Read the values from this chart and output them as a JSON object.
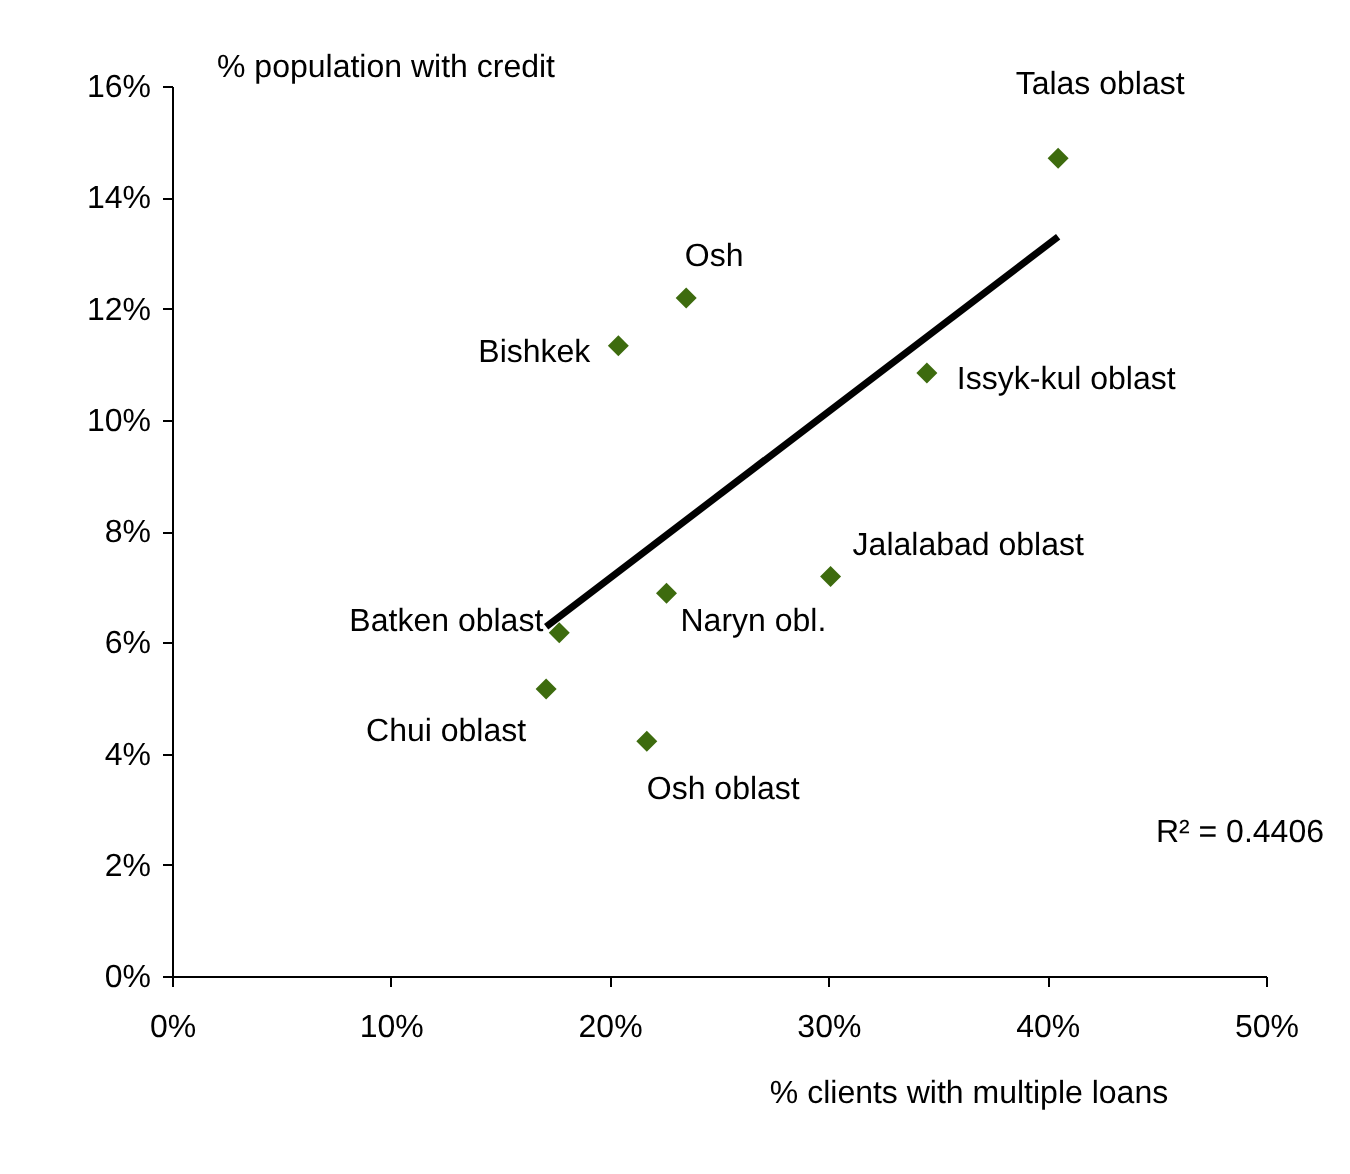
{
  "chart_data": {
    "type": "scatter",
    "xlabel": "% clients with multiple loans",
    "ylabel": "% population with credit",
    "series": [
      {
        "marker": "diamond",
        "color": "#3d6b0e",
        "x": [
          40.5,
          23.5,
          20.4,
          34.5,
          30.1,
          22.6,
          17.7,
          17.1,
          21.7
        ],
        "values": [
          14.7,
          12.19,
          11.33,
          10.84,
          7.18,
          6.88,
          6.17,
          5.16,
          4.22
        ]
      },
      {
        "type": "line",
        "color": "#000000",
        "x": [
          17.1,
          40.5
        ],
        "values": [
          6.28,
          13.29
        ]
      }
    ],
    "annotations": [
      {
        "text": "Talas oblast",
        "x": 40.5,
        "y": 14.7
      },
      {
        "text": "Osh",
        "x": 23.5,
        "y": 12.19
      },
      {
        "text": "Bishkek",
        "x": 20.4,
        "y": 11.33
      },
      {
        "text": "Issyk-kul oblast",
        "x": 34.5,
        "y": 10.84
      },
      {
        "text": "Jalalabad oblast",
        "x": 30.1,
        "y": 7.18
      },
      {
        "text": "Naryn obl.",
        "x": 22.6,
        "y": 6.88
      },
      {
        "text": "Batken oblast",
        "x": 17.7,
        "y": 6.17
      },
      {
        "text": "Chui oblast",
        "x": 17.1,
        "y": 5.16
      },
      {
        "text": "Osh oblast",
        "x": 21.7,
        "y": 4.22
      },
      "R² = 0.4406"
    ],
    "xlim": [
      0,
      50
    ],
    "ylim": [
      0,
      16
    ],
    "xticks": [
      {
        "value": 0,
        "label": "0%"
      },
      {
        "value": 10,
        "label": "10%"
      },
      {
        "value": 20,
        "label": "20%"
      },
      {
        "value": 30,
        "label": "30%"
      },
      {
        "value": 40,
        "label": "40%"
      },
      {
        "value": 50,
        "label": "50%"
      }
    ],
    "yticks": [
      {
        "value": 0,
        "label": "0%"
      },
      {
        "value": 2,
        "label": "2%"
      },
      {
        "value": 4,
        "label": "4%"
      },
      {
        "value": 6,
        "label": "6%"
      },
      {
        "value": 8,
        "label": "8%"
      },
      {
        "value": 10,
        "label": "10%"
      },
      {
        "value": 12,
        "label": "12%"
      },
      {
        "value": 14,
        "label": "14%"
      },
      {
        "value": 16,
        "label": "16%"
      }
    ],
    "grid": false,
    "line_style": "solid"
  }
}
